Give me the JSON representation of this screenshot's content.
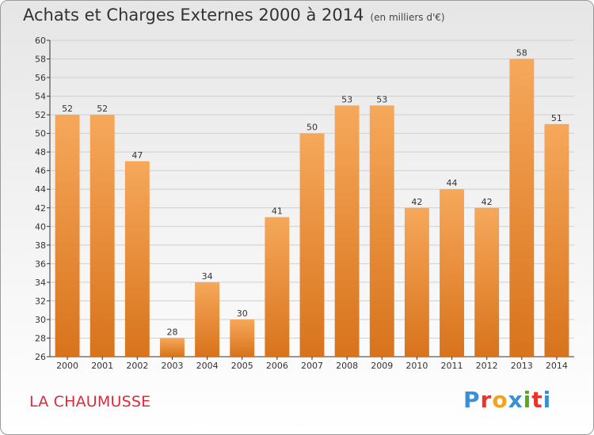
{
  "header": {
    "title": "Achats et Charges Externes 2000 à 2014",
    "subtitle": "(en milliers d'€)"
  },
  "footer": {
    "location": "LA CHAUMUSSE",
    "logo_letters": [
      "P",
      "r",
      "o",
      "x",
      "i",
      "t",
      "i"
    ],
    "logo_colors": [
      "#3a8fd6",
      "#e8352b",
      "#f3a21c",
      "#3a8fd6",
      "#5aa820",
      "#e8352b",
      "#3a8fd6"
    ]
  },
  "colors": {
    "bar_light": "#f6a85a",
    "bar_dark": "#d8731c",
    "grid": "#cfcfcf",
    "axis": "#333333"
  },
  "chart_data": {
    "type": "bar",
    "categories": [
      "2000",
      "2001",
      "2002",
      "2003",
      "2004",
      "2005",
      "2006",
      "2007",
      "2008",
      "2009",
      "2010",
      "2011",
      "2012",
      "2013",
      "2014"
    ],
    "values": [
      52,
      52,
      47,
      28,
      34,
      30,
      41,
      50,
      53,
      53,
      42,
      44,
      42,
      58,
      51
    ],
    "ylim": [
      26,
      60
    ],
    "ytick_step": 2,
    "grid": true
  }
}
